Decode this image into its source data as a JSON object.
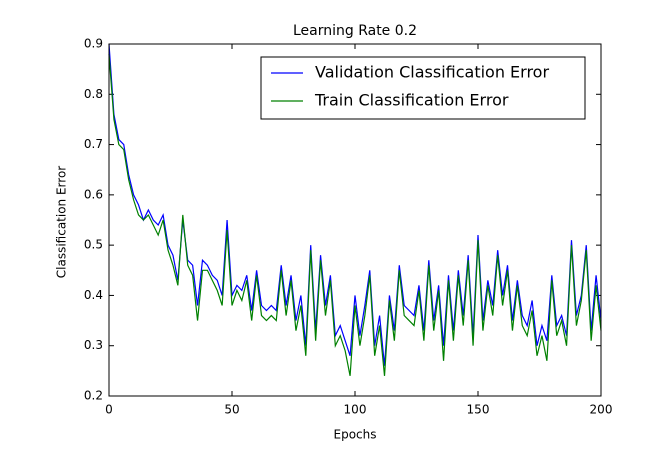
{
  "chart_data": {
    "type": "line",
    "title": "Learning Rate 0.2",
    "xlabel": "Epochs",
    "ylabel": "Classification Error",
    "x": [
      0,
      2,
      4,
      6,
      8,
      10,
      12,
      14,
      16,
      18,
      20,
      22,
      24,
      26,
      28,
      30,
      32,
      34,
      36,
      38,
      40,
      42,
      44,
      46,
      48,
      50,
      52,
      54,
      56,
      58,
      60,
      62,
      64,
      66,
      68,
      70,
      72,
      74,
      76,
      78,
      80,
      82,
      84,
      86,
      88,
      90,
      92,
      94,
      96,
      98,
      100,
      102,
      104,
      106,
      108,
      110,
      112,
      114,
      116,
      118,
      120,
      122,
      124,
      126,
      128,
      130,
      132,
      134,
      136,
      138,
      140,
      142,
      144,
      146,
      148,
      150,
      152,
      154,
      156,
      158,
      160,
      162,
      164,
      166,
      168,
      170,
      172,
      174,
      176,
      178,
      180,
      182,
      184,
      186,
      188,
      190,
      192,
      194,
      196,
      198,
      200
    ],
    "series": [
      {
        "name": "Validation Classification Error",
        "color": "#0000ff",
        "values": [
          0.9,
          0.76,
          0.71,
          0.7,
          0.64,
          0.6,
          0.58,
          0.55,
          0.57,
          0.55,
          0.54,
          0.56,
          0.5,
          0.48,
          0.43,
          0.55,
          0.47,
          0.46,
          0.38,
          0.47,
          0.46,
          0.44,
          0.43,
          0.4,
          0.55,
          0.4,
          0.42,
          0.41,
          0.44,
          0.37,
          0.45,
          0.38,
          0.37,
          0.38,
          0.37,
          0.46,
          0.38,
          0.44,
          0.35,
          0.4,
          0.3,
          0.5,
          0.33,
          0.48,
          0.38,
          0.44,
          0.32,
          0.34,
          0.31,
          0.28,
          0.4,
          0.32,
          0.38,
          0.45,
          0.3,
          0.36,
          0.26,
          0.4,
          0.33,
          0.46,
          0.38,
          0.37,
          0.36,
          0.42,
          0.33,
          0.47,
          0.35,
          0.42,
          0.3,
          0.44,
          0.33,
          0.45,
          0.36,
          0.48,
          0.32,
          0.52,
          0.35,
          0.43,
          0.38,
          0.49,
          0.4,
          0.46,
          0.35,
          0.43,
          0.36,
          0.34,
          0.39,
          0.3,
          0.34,
          0.31,
          0.44,
          0.34,
          0.36,
          0.32,
          0.51,
          0.36,
          0.4,
          0.5,
          0.33,
          0.44,
          0.35
        ]
      },
      {
        "name": "Train Classification Error",
        "color": "#008000",
        "values": [
          0.88,
          0.75,
          0.7,
          0.69,
          0.63,
          0.59,
          0.56,
          0.55,
          0.56,
          0.54,
          0.52,
          0.55,
          0.49,
          0.46,
          0.42,
          0.56,
          0.46,
          0.44,
          0.35,
          0.45,
          0.45,
          0.43,
          0.41,
          0.38,
          0.53,
          0.38,
          0.41,
          0.39,
          0.43,
          0.35,
          0.44,
          0.36,
          0.35,
          0.36,
          0.35,
          0.45,
          0.36,
          0.43,
          0.33,
          0.38,
          0.28,
          0.49,
          0.31,
          0.47,
          0.36,
          0.43,
          0.3,
          0.32,
          0.29,
          0.24,
          0.38,
          0.3,
          0.36,
          0.44,
          0.28,
          0.34,
          0.24,
          0.39,
          0.31,
          0.45,
          0.36,
          0.35,
          0.34,
          0.41,
          0.31,
          0.46,
          0.33,
          0.41,
          0.27,
          0.43,
          0.31,
          0.44,
          0.34,
          0.47,
          0.3,
          0.51,
          0.33,
          0.42,
          0.36,
          0.48,
          0.38,
          0.45,
          0.33,
          0.42,
          0.34,
          0.32,
          0.37,
          0.28,
          0.32,
          0.27,
          0.43,
          0.32,
          0.35,
          0.3,
          0.5,
          0.34,
          0.39,
          0.49,
          0.31,
          0.42,
          0.33
        ]
      }
    ],
    "xlim": [
      0,
      200
    ],
    "xticks": [
      0,
      50,
      100,
      150,
      200
    ],
    "ylim": [
      0.2,
      0.9
    ],
    "yticks": [
      0.2,
      0.3,
      0.4,
      0.5,
      0.6,
      0.7,
      0.8,
      0.9
    ],
    "legend": "upper right"
  }
}
